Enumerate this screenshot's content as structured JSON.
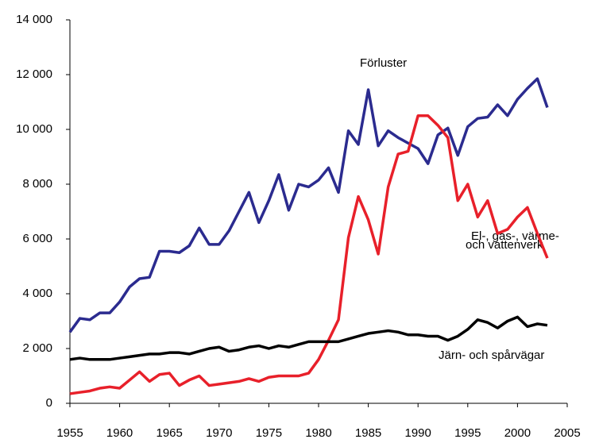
{
  "chart_data": {
    "type": "line",
    "x": [
      1955,
      1956,
      1957,
      1958,
      1959,
      1960,
      1961,
      1962,
      1963,
      1964,
      1965,
      1966,
      1967,
      1968,
      1969,
      1970,
      1971,
      1972,
      1973,
      1974,
      1975,
      1976,
      1977,
      1978,
      1979,
      1980,
      1981,
      1982,
      1983,
      1984,
      1985,
      1986,
      1987,
      1988,
      1989,
      1990,
      1991,
      1992,
      1993,
      1994,
      1995,
      1996,
      1997,
      1998,
      1999,
      2000,
      2001,
      2002,
      2003
    ],
    "series": [
      {
        "name": "Förluster",
        "color": "#2b2b8f",
        "values": [
          2600,
          3100,
          3050,
          3300,
          3300,
          3700,
          4250,
          4550,
          4600,
          5550,
          5550,
          5500,
          5750,
          6400,
          5800,
          5800,
          6300,
          7000,
          7700,
          6600,
          7400,
          8350,
          7050,
          8000,
          7900,
          8150,
          8600,
          7700,
          9950,
          9450,
          11450,
          9400,
          9950,
          9700,
          9500,
          9300,
          8750,
          9800,
          10050,
          9050,
          10100,
          10400,
          10450,
          10900,
          10500,
          11100,
          11500,
          11850,
          10800
        ]
      },
      {
        "name": "El-, gas-, värme- och vattenverk",
        "color": "#e8202a",
        "values": [
          350,
          400,
          450,
          550,
          600,
          550,
          850,
          1150,
          800,
          1050,
          1100,
          650,
          850,
          1000,
          650,
          700,
          750,
          800,
          900,
          800,
          950,
          1000,
          1000,
          1000,
          1100,
          1600,
          2300,
          3050,
          6050,
          7550,
          6700,
          5450,
          7900,
          9100,
          9200,
          10500,
          10500,
          10150,
          9700,
          7400,
          8000,
          6800,
          7400,
          6200,
          6350,
          6800,
          7150,
          6200,
          5300
        ]
      },
      {
        "name": "Järn- och spårvägar",
        "color": "#000000",
        "values": [
          1600,
          1650,
          1600,
          1600,
          1600,
          1650,
          1700,
          1750,
          1800,
          1800,
          1850,
          1850,
          1800,
          1900,
          2000,
          2050,
          1900,
          1950,
          2050,
          2100,
          2000,
          2100,
          2050,
          2150,
          2250,
          2250,
          2250,
          2250,
          2350,
          2450,
          2550,
          2600,
          2650,
          2600,
          2500,
          2500,
          2450,
          2450,
          2300,
          2450,
          2700,
          3050,
          2950,
          2750,
          3000,
          3150,
          2800,
          2900,
          2850
        ]
      }
    ],
    "xlim": [
      1955,
      2005
    ],
    "xticks": [
      1955,
      1960,
      1965,
      1970,
      1975,
      1980,
      1985,
      1990,
      1995,
      2000,
      2005
    ],
    "ylim": [
      0,
      14000
    ],
    "yticks": [
      0,
      {
        "value": 2000,
        "label": "2 000"
      },
      {
        "value": 4000,
        "label": "4 000"
      },
      {
        "value": 6000,
        "label": "6 000"
      },
      {
        "value": 8000,
        "label": "8 000"
      },
      {
        "value": 10000,
        "label": "10 000"
      },
      {
        "value": 12000,
        "label": "12 000"
      },
      {
        "value": 14000,
        "label": "14 000"
      }
    ],
    "annotations": [
      "Förluster",
      "El-, gas-, värme-",
      "och vattenverk",
      "Järn- och spårvägar"
    ]
  }
}
